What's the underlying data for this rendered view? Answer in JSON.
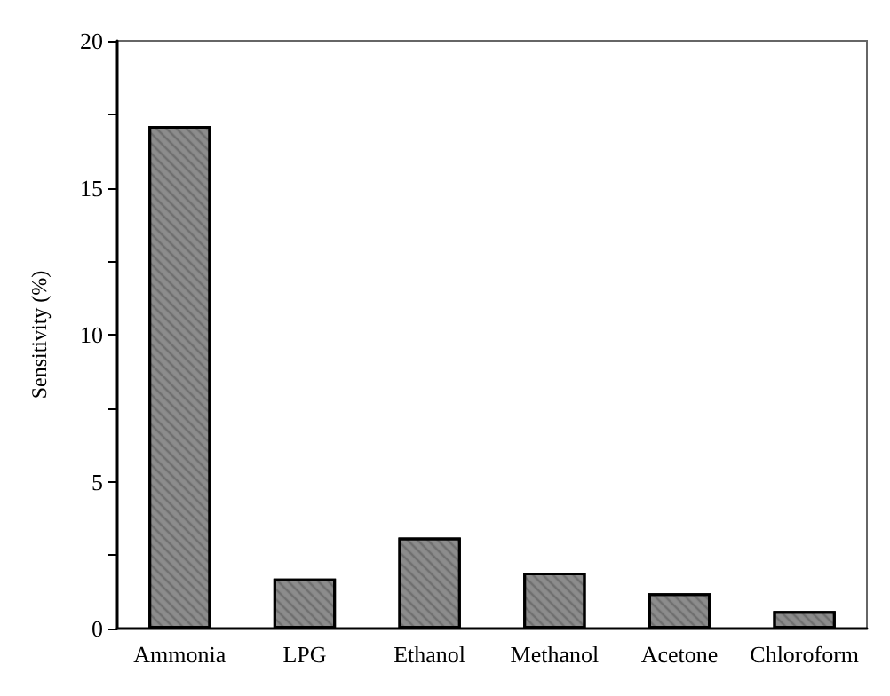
{
  "chart_data": {
    "type": "bar",
    "ylabel": "Sensitivity (%)",
    "categories": [
      "Ammonia",
      "LPG",
      "Ethanol",
      "Methanol",
      "Acetone",
      "Chloroform"
    ],
    "values": [
      17.1,
      1.7,
      3.1,
      1.9,
      1.2,
      0.6
    ],
    "color": "#8c8c8c",
    "ylim": [
      0,
      20
    ],
    "yticks": [
      0,
      {
        "value": 2.5,
        "label": null
      },
      5,
      {
        "value": 7.5,
        "label": null
      },
      10,
      {
        "value": 12.5,
        "label": null
      },
      15,
      {
        "value": 17.5,
        "label": null
      },
      20
    ],
    "grid": false
  }
}
